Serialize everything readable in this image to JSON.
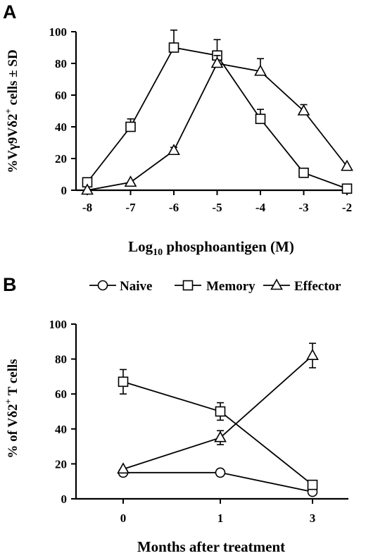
{
  "chart_data": [
    {
      "panel": "A",
      "type": "line",
      "x_ticks": [
        "-8",
        "-7",
        "-6",
        "-5",
        "-4",
        "-3",
        "-2"
      ],
      "y_ticks": [
        "0",
        "20",
        "40",
        "60",
        "80",
        "100"
      ],
      "ylim": [
        0,
        100
      ],
      "xlim": [
        -8,
        -2
      ],
      "xlabel": "",
      "ylabel": "",
      "series": [
        {
          "marker": "square",
          "x": [
            -8,
            -7,
            -6,
            -5,
            -4,
            -3,
            -2
          ],
          "values": [
            5,
            40,
            90,
            85,
            45,
            11,
            1
          ],
          "errors": [
            0,
            5,
            11,
            10,
            6,
            0,
            0
          ]
        },
        {
          "marker": "triangle",
          "x": [
            -8,
            -7,
            -6,
            -5,
            -4,
            -3,
            -2
          ],
          "values": [
            0,
            5,
            25,
            80,
            75,
            50,
            15
          ],
          "errors": [
            0,
            0,
            2,
            5,
            8,
            4,
            0
          ]
        }
      ]
    },
    {
      "panel": "B",
      "type": "line",
      "x_ticks": [
        "0",
        "1",
        "3"
      ],
      "y_ticks": [
        "0",
        "20",
        "40",
        "60",
        "80",
        "100"
      ],
      "ylim": [
        0,
        100
      ],
      "xlabel": "Months after treatment",
      "ylabel": "",
      "legend_position": "top",
      "series": [
        {
          "name": "Naive",
          "marker": "circle",
          "x": [
            0,
            1,
            3
          ],
          "values": [
            15,
            15,
            4
          ],
          "errors": [
            2,
            2,
            0
          ]
        },
        {
          "name": "Memory",
          "marker": "square",
          "x": [
            0,
            1,
            3
          ],
          "values": [
            67,
            50,
            8
          ],
          "errors": [
            7,
            5,
            0
          ]
        },
        {
          "name": "Effector",
          "marker": "triangle",
          "x": [
            0,
            1,
            3
          ],
          "values": [
            17,
            35,
            82
          ],
          "errors": [
            0,
            4,
            7
          ]
        }
      ]
    }
  ],
  "panelA": {
    "label": "A",
    "ylabel_part1": "%V",
    "ylabel_gamma": "γ",
    "ylabel_part2": "9V",
    "ylabel_delta": "δ",
    "ylabel_part3": "2",
    "ylabel_sup": "+",
    "ylabel_part4": " cells ± SD",
    "xlabel_part1": "Log",
    "xlabel_sub": "10",
    "xlabel_part2": " phosphoantigen (M)"
  },
  "panelB": {
    "label": "B",
    "ylabel_part1": "% of V",
    "ylabel_delta": "δ",
    "ylabel_part2": "2",
    "ylabel_sup": "+",
    "ylabel_part3": " T cells"
  }
}
